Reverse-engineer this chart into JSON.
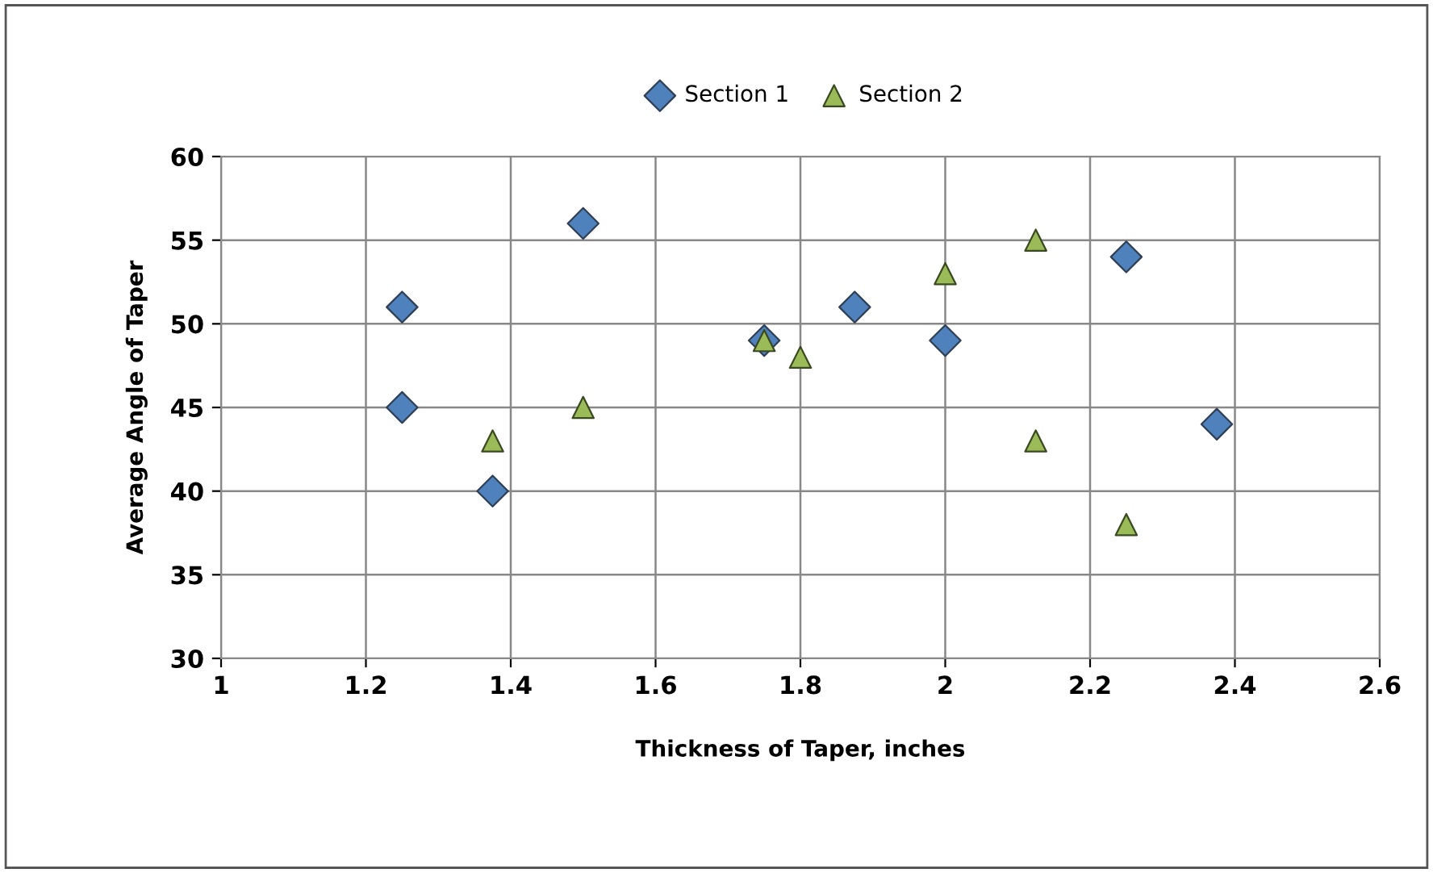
{
  "chart_data": {
    "type": "scatter",
    "xlabel": "Thickness of Taper, inches",
    "ylabel": "Average Angle of Taper",
    "series": [
      {
        "name": "Section 1",
        "color": "#4f81bd",
        "marker": "diamond",
        "x": [
          1.25,
          1.25,
          1.375,
          1.5,
          1.75,
          1.875,
          2.0,
          2.25,
          2.375
        ],
        "values": [
          51,
          45,
          40,
          56,
          49,
          51,
          49,
          54,
          44
        ]
      },
      {
        "name": "Section 2",
        "color": "#9bbb59",
        "marker": "triangle",
        "x": [
          1.375,
          1.5,
          1.75,
          1.8,
          2.0,
          2.125,
          2.125,
          2.25
        ],
        "values": [
          43,
          45,
          49,
          48,
          53,
          55,
          43,
          38
        ]
      }
    ],
    "xlim": [
      1,
      2.6
    ],
    "xticks": [
      1,
      1.2,
      1.4,
      1.6,
      1.8,
      2,
      2.2,
      2.4,
      2.6
    ],
    "ylim": [
      30,
      60
    ],
    "yticks": [
      30,
      35,
      40,
      45,
      50,
      55,
      60
    ],
    "grid": true,
    "legend": "top"
  }
}
